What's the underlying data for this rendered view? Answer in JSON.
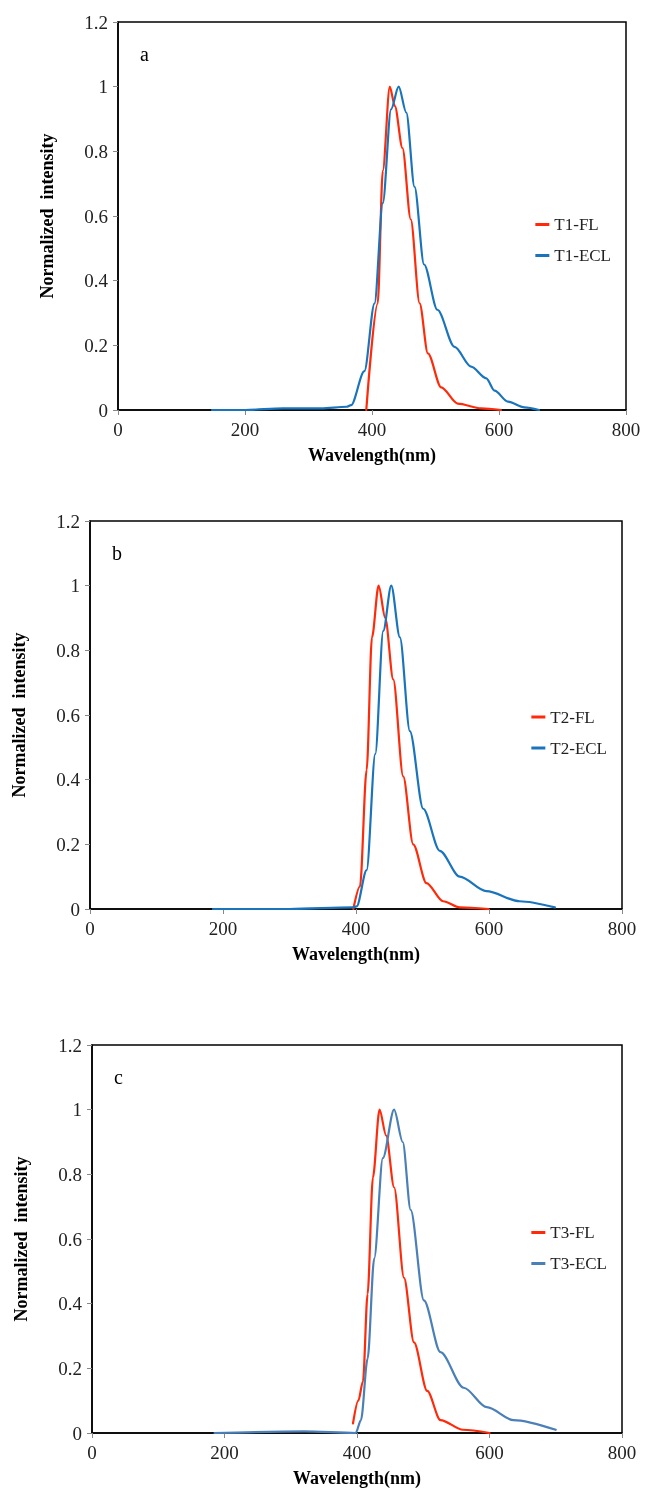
{
  "chart_data": [
    {
      "type": "line",
      "xlabel": "Wavelength(nm)",
      "ylabel": "Normalized  intensity",
      "annotations": [
        "a"
      ],
      "xlim": [
        0,
        800
      ],
      "xticks": [
        0,
        200,
        400,
        600,
        800
      ],
      "ylim": [
        0,
        1.2
      ],
      "yticks": [
        0,
        0.2,
        0.4,
        0.6,
        0.8,
        1,
        1.2
      ],
      "grid": false,
      "legend": "right",
      "marker": "none",
      "line_style": "solid",
      "series": [
        {
          "name": "T1-FL",
          "color": "#ff2a0a",
          "x": [
            391,
            409,
            417,
            428,
            436,
            448,
            461,
            475,
            488,
            509,
            535,
            572,
            603
          ],
          "values": [
            0,
            0.33,
            0.74,
            1,
            0.94,
            0.81,
            0.59,
            0.33,
            0.175,
            0.07,
            0.02,
            0.005,
            0
          ]
        },
        {
          "name": "T1-ECL",
          "color": "#1a74bc",
          "x": [
            148,
            200,
            260,
            320,
            360,
            367,
            388,
            404,
            417,
            430,
            442,
            454,
            467,
            482,
            503,
            530,
            556,
            580,
            593,
            614,
            640,
            663
          ],
          "values": [
            0,
            0,
            0.005,
            0.005,
            0.01,
            0.015,
            0.12,
            0.33,
            0.64,
            0.93,
            1,
            0.92,
            0.69,
            0.45,
            0.31,
            0.195,
            0.134,
            0.098,
            0.06,
            0.026,
            0.008,
            0
          ]
        }
      ]
    },
    {
      "type": "line",
      "xlabel": "Wavelength(nm)",
      "ylabel": "Normalized  intensity",
      "annotations": [
        "b"
      ],
      "xlim": [
        0,
        800
      ],
      "xticks": [
        0,
        200,
        400,
        600,
        800
      ],
      "ylim": [
        0,
        1.2
      ],
      "yticks": [
        0,
        0.2,
        0.4,
        0.6,
        0.8,
        1,
        1.2
      ],
      "grid": false,
      "legend": "right",
      "marker": "none",
      "line_style": "solid",
      "series": [
        {
          "name": "T2-FL",
          "color": "#ff2a0a",
          "x": [
            396,
            406,
            416,
            424,
            434,
            444,
            456,
            471,
            486,
            506,
            531,
            556,
            599
          ],
          "values": [
            0,
            0.07,
            0.43,
            0.84,
            1,
            0.9,
            0.71,
            0.41,
            0.2,
            0.08,
            0.024,
            0.005,
            0
          ]
        },
        {
          "name": "T2-ECL",
          "color": "#1a74bc",
          "x": [
            185,
            300,
            395,
            401,
            416,
            429,
            441,
            453,
            466,
            481,
            501,
            526,
            556,
            596,
            646,
            699
          ],
          "values": [
            0,
            0,
            0.005,
            0.008,
            0.12,
            0.48,
            0.86,
            1,
            0.84,
            0.55,
            0.31,
            0.18,
            0.1,
            0.055,
            0.024,
            0.005
          ]
        }
      ]
    },
    {
      "type": "line",
      "xlabel": "Wavelength(nm)",
      "ylabel": "Normalized  intensity",
      "annotations": [
        "c"
      ],
      "xlim": [
        0,
        800
      ],
      "xticks": [
        0,
        200,
        400,
        600,
        800
      ],
      "ylim": [
        0,
        1.2
      ],
      "yticks": [
        0,
        0.2,
        0.4,
        0.6,
        0.8,
        1,
        1.2
      ],
      "grid": false,
      "legend": "right",
      "marker": "none",
      "line_style": "solid",
      "series": [
        {
          "name": "T3-FL",
          "color": "#ff2a0a",
          "x": [
            394,
            402,
            409,
            416,
            424,
            434,
            444,
            456,
            471,
            486,
            506,
            526,
            560,
            600
          ],
          "values": [
            0.03,
            0.1,
            0.16,
            0.43,
            0.79,
            1,
            0.92,
            0.76,
            0.48,
            0.28,
            0.13,
            0.04,
            0.01,
            0
          ]
        },
        {
          "name": "T3-ECL",
          "color": "#4a7fb8",
          "x": [
            185,
            320,
            398,
            406,
            416,
            426,
            439,
            456,
            469,
            481,
            501,
            526,
            561,
            596,
            636,
            700
          ],
          "values": [
            0,
            0.005,
            0,
            0.04,
            0.23,
            0.54,
            0.85,
            1,
            0.9,
            0.69,
            0.41,
            0.25,
            0.14,
            0.08,
            0.04,
            0.01
          ]
        }
      ]
    }
  ]
}
